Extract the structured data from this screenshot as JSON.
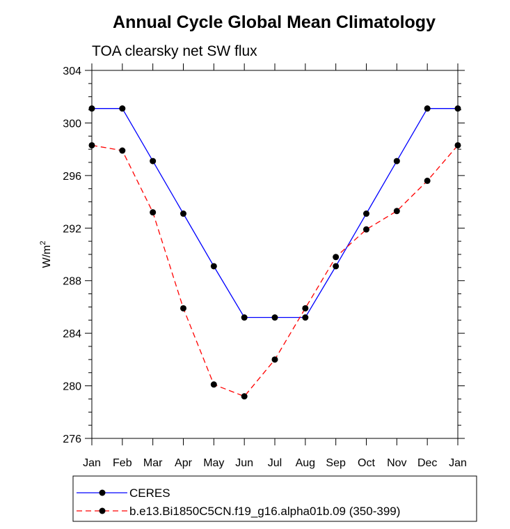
{
  "chart_data": {
    "type": "line",
    "title": "Annual Cycle Global Mean Climatology",
    "subtitle": "TOA clearsky net SW flux",
    "ylabel": "W/m",
    "ylabel_superscript": "2",
    "xlabel": "",
    "categories": [
      "Jan",
      "Feb",
      "Mar",
      "Apr",
      "May",
      "Jun",
      "Jul",
      "Aug",
      "Sep",
      "Oct",
      "Nov",
      "Dec",
      "Jan"
    ],
    "ylim": [
      276,
      304
    ],
    "yticks": [
      "276",
      "280",
      "284",
      "288",
      "292",
      "296",
      "300",
      "304"
    ],
    "legend_position": "bottom",
    "series": [
      {
        "name": "CERES",
        "color": "#0000ff",
        "dash": "solid",
        "values": [
          301.1,
          301.1,
          297.1,
          293.1,
          289.1,
          285.2,
          285.2,
          285.2,
          289.1,
          293.1,
          297.1,
          301.1,
          301.1
        ]
      },
      {
        "name": "b.e13.Bi1850C5CN.f19_g16.alpha01b.09 (350-399)",
        "color": "#ff0000",
        "dash": "dashed",
        "values": [
          298.3,
          297.9,
          293.2,
          285.9,
          280.1,
          279.2,
          282.0,
          285.9,
          289.8,
          291.9,
          293.3,
          295.6,
          298.3
        ]
      }
    ]
  }
}
